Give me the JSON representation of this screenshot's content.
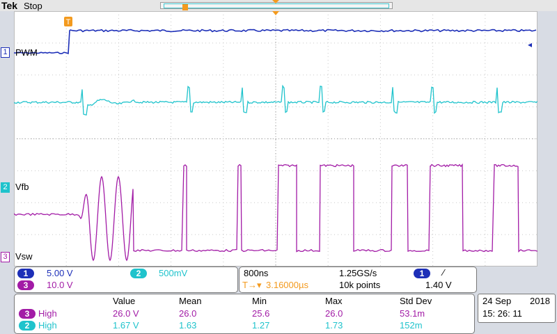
{
  "header": {
    "brand": "Tek",
    "state": "Stop"
  },
  "channels": {
    "ch1": {
      "number": "1",
      "name": "PWM",
      "color": "#1d2fb8"
    },
    "ch2": {
      "number": "2",
      "name": "Vfb",
      "color": "#1fc3cc"
    },
    "ch3": {
      "number": "3",
      "name": "Vsw",
      "color": "#a21ba6"
    },
    "trigger_marker": "T",
    "trigger_arrow": "◂"
  },
  "scales": {
    "ch1": {
      "number": "1",
      "value": "5.00 V"
    },
    "ch2": {
      "number": "2",
      "value": "500mV"
    },
    "ch3": {
      "number": "3",
      "value": "10.0 V"
    }
  },
  "timebase": {
    "time_per_div": "800ns",
    "sample_rate": "1.25GS/s",
    "trigger_source": "1",
    "trigger_slope": "∕",
    "trigger_position_prefix": "T→▾",
    "trigger_position": "3.16000µs",
    "record_length": "10k points",
    "trigger_level": "1.40 V"
  },
  "measurements": {
    "headers": [
      "Value",
      "Mean",
      "Min",
      "Max",
      "Std Dev"
    ],
    "rows": [
      {
        "channel": "3",
        "name": "High",
        "value": "26.0 V",
        "mean": "26.0",
        "min": "25.6",
        "max": "26.0",
        "std": "53.1m"
      },
      {
        "channel": "2",
        "name": "High",
        "value": "1.67 V",
        "mean": "1.63",
        "min": "1.27",
        "max": "1.73",
        "std": "152m"
      }
    ]
  },
  "datetime": {
    "date": "24 Sep",
    "year": "2018",
    "time": "15: 26: 11"
  }
}
